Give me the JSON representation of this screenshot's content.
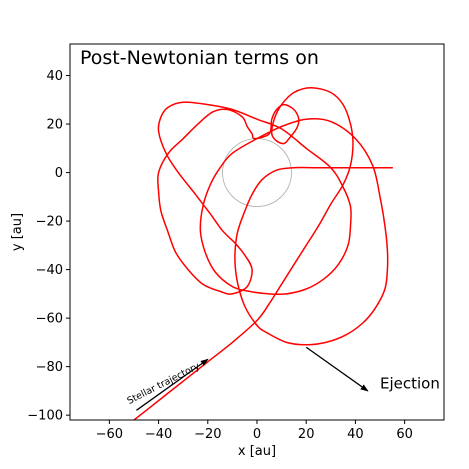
{
  "chart_data": {
    "type": "line",
    "title": "Post-Newtonian terms on",
    "xlabel": "x [au]",
    "ylabel": "y [au]",
    "xlim": [
      -76,
      76
    ],
    "ylim": [
      -102,
      53
    ],
    "xticks": [
      -60,
      -40,
      -20,
      0,
      20,
      40,
      60
    ],
    "yticks": [
      -100,
      -80,
      -60,
      -40,
      -20,
      0,
      20,
      40
    ],
    "grid": false,
    "series": [
      {
        "color": "#ff0000",
        "x": [
          -50,
          -40,
          -30,
          -20,
          -10,
          0,
          5,
          10,
          15,
          20,
          25,
          30,
          35,
          38,
          39,
          38,
          35,
          30,
          22,
          15,
          10,
          7,
          6,
          8,
          11,
          13,
          16,
          17,
          15,
          11,
          8,
          6,
          5,
          -1,
          -2,
          -4,
          -6,
          -12,
          -18,
          -24,
          -30,
          -36,
          -40,
          -40,
          -39,
          -36,
          -33,
          -28,
          -22,
          -15,
          -10,
          -4,
          -2,
          -5,
          -9,
          -14,
          -19,
          -25,
          -32,
          -37,
          -40,
          -39,
          -36,
          -30,
          -20,
          -10,
          0,
          10,
          20,
          30,
          35,
          38,
          38,
          37,
          33,
          27,
          20,
          12,
          5,
          -3,
          -10,
          -17,
          -21,
          -23,
          -22,
          -19,
          -15,
          -10,
          0,
          10,
          20,
          30,
          40,
          47,
          50,
          52,
          53,
          53,
          52,
          48,
          43,
          36,
          28,
          20,
          12,
          4,
          0,
          -5,
          -8,
          -9,
          -8,
          -5,
          -2,
          2,
          8,
          15,
          25,
          40,
          55
        ],
        "y": [
          -102,
          -94,
          -86,
          -78,
          -70,
          -61,
          -54,
          -46,
          -38,
          -30,
          -22,
          -13,
          -5,
          3,
          12,
          20,
          28,
          33,
          35,
          33,
          28,
          22,
          16,
          13,
          12,
          14,
          18,
          22,
          26,
          28,
          26,
          22,
          16,
          14,
          16,
          19,
          23,
          26,
          25,
          20,
          14,
          8,
          0,
          -8,
          -16,
          -25,
          -33,
          -40,
          -46,
          -49,
          -50,
          -47,
          -40,
          -34,
          -29,
          -24,
          -17,
          -9,
          0,
          8,
          17,
          23,
          27,
          29,
          28,
          26,
          22,
          18,
          10,
          2,
          -6,
          -14,
          -22,
          -30,
          -38,
          -44,
          -48,
          -50,
          -50,
          -49,
          -47,
          -41,
          -33,
          -24,
          -14,
          -5,
          2,
          8,
          14,
          19,
          22,
          21,
          14,
          3,
          -10,
          -22,
          -32,
          -40,
          -48,
          -56,
          -62,
          -67,
          -70,
          -71,
          -70,
          -66,
          -63,
          -55,
          -45,
          -35,
          -25,
          -16,
          -9,
          -3,
          1,
          2,
          2,
          2,
          2
        ]
      }
    ],
    "circle": {
      "center": [
        0,
        0
      ],
      "radius": 14,
      "color": "#aaaaaa"
    },
    "annotations": [
      {
        "text": "Stellar trajectory",
        "x": -52,
        "y": -95.5,
        "rotation_deg": -27
      },
      {
        "text": "Ejection",
        "x": 50,
        "y": -89
      }
    ],
    "arrows": [
      {
        "from": [
          -49,
          -98
        ],
        "to": [
          -20,
          -77
        ],
        "color": "#000000"
      },
      {
        "from": [
          20,
          -72
        ],
        "to": [
          45,
          -90
        ],
        "color": "#000000"
      }
    ]
  }
}
